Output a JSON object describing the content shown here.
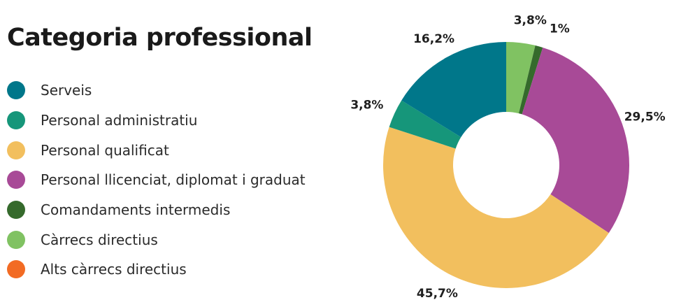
{
  "chart_data": {
    "type": "pie",
    "title": "Categoria professional",
    "categories": [
      "Serveis",
      "Personal administratiu",
      "Personal qualificat",
      "Personal llicenciat, diplomat i graduat",
      "Comandaments intermedis",
      "Càrrecs directius",
      "Alts càrrecs directius"
    ],
    "colors": [
      "#00778a",
      "#16967a",
      "#f2bf5e",
      "#a84a97",
      "#356a2c",
      "#80c262",
      "#f26b24"
    ],
    "slices": [
      {
        "label": "Càrrecs directius",
        "value": 3.8,
        "display": "3,8%",
        "color": "#80c262"
      },
      {
        "label": "Comandaments intermedis",
        "value": 1.0,
        "display": "1%",
        "color": "#356a2c"
      },
      {
        "label": "Personal llicenciat, diplomat i graduat",
        "value": 29.5,
        "display": "29,5%",
        "color": "#a84a97"
      },
      {
        "label": "Personal qualificat",
        "value": 45.7,
        "display": "45,7%",
        "color": "#f2bf5e"
      },
      {
        "label": "Personal administratiu",
        "value": 3.8,
        "display": "3,8%",
        "color": "#16967a"
      },
      {
        "label": "Serveis",
        "value": 16.2,
        "display": "16,2%",
        "color": "#00778a"
      }
    ],
    "legend_position": "left"
  }
}
